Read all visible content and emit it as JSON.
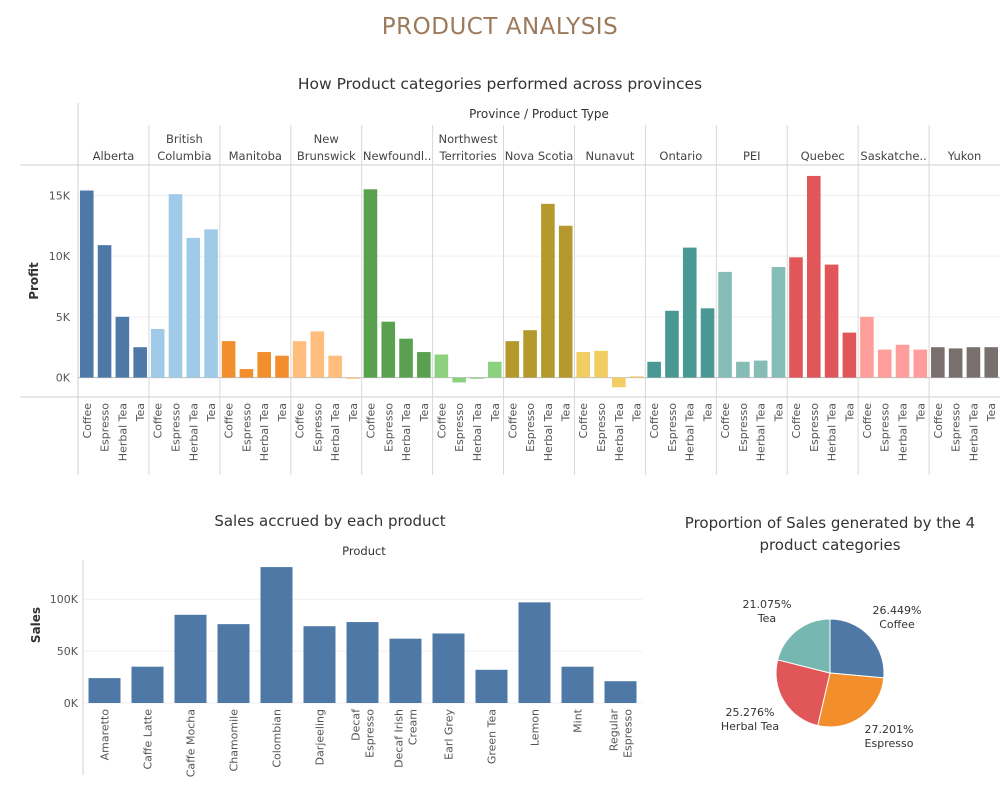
{
  "page_title": "PRODUCT ANALYSIS",
  "colors": {
    "title": "#9c7a5b",
    "provinces": [
      "#4e79a7",
      "#9fcae8",
      "#f28e2b",
      "#ffbe7d",
      "#59a14f",
      "#8cd17d",
      "#b6992d",
      "#f1ce63",
      "#499894",
      "#86bcb6",
      "#e15759",
      "#ff9d9a",
      "#79706e"
    ],
    "sales_bar": "#4e79a7",
    "pie": {
      "Coffee": "#4e79a7",
      "Espresso": "#f28e2b",
      "Herbal Tea": "#e15759",
      "Tea": "#76b7b2"
    }
  },
  "chart_data": [
    {
      "type": "bar",
      "title": "How Product categories performed across provinces",
      "header": "Province / Product Type",
      "ylabel": "Profit",
      "ylim": [
        -1600,
        17500
      ],
      "yticks": [
        0,
        5000,
        10000,
        15000
      ],
      "ytick_labels": [
        "0K",
        "5K",
        "10K",
        "15K"
      ],
      "categories": [
        "Coffee",
        "Espresso",
        "Herbal Tea",
        "Tea"
      ],
      "groups": [
        {
          "name": [
            "Alberta"
          ],
          "values": [
            15400,
            10900,
            5000,
            2500
          ]
        },
        {
          "name": [
            "British",
            "Columbia"
          ],
          "values": [
            4000,
            15100,
            11500,
            12200
          ]
        },
        {
          "name": [
            "Manitoba"
          ],
          "values": [
            3000,
            700,
            2100,
            1800
          ]
        },
        {
          "name": [
            "New",
            "Brunswick"
          ],
          "values": [
            3000,
            3800,
            1800,
            -100
          ]
        },
        {
          "name": [
            "Newfoundl.."
          ],
          "values": [
            15500,
            4600,
            3200,
            2100
          ]
        },
        {
          "name": [
            "Northwest",
            "Territories"
          ],
          "values": [
            1900,
            -400,
            -100,
            1300
          ]
        },
        {
          "name": [
            "Nova Scotia"
          ],
          "values": [
            3000,
            3900,
            14300,
            12500
          ]
        },
        {
          "name": [
            "Nunavut"
          ],
          "values": [
            2100,
            2200,
            -800,
            100
          ]
        },
        {
          "name": [
            "Ontario"
          ],
          "values": [
            1300,
            5500,
            10700,
            5700
          ]
        },
        {
          "name": [
            "PEI"
          ],
          "values": [
            8700,
            1300,
            1400,
            9100
          ]
        },
        {
          "name": [
            "Quebec"
          ],
          "values": [
            9900,
            16600,
            9300,
            3700
          ]
        },
        {
          "name": [
            "Saskatche.."
          ],
          "values": [
            5000,
            2300,
            2700,
            2300
          ]
        },
        {
          "name": [
            "Yukon"
          ],
          "values": [
            2500,
            2400,
            2500,
            2500
          ]
        }
      ]
    },
    {
      "type": "bar",
      "title": "Sales accrued by each product",
      "header": "Product",
      "ylabel": "Sales",
      "ylim": [
        0,
        133000
      ],
      "yticks": [
        0,
        50000,
        100000
      ],
      "ytick_labels": [
        "0K",
        "50K",
        "100K"
      ],
      "categories": [
        [
          "Amaretto"
        ],
        [
          "Caffe Latte"
        ],
        [
          "Caffe Mocha"
        ],
        [
          "Chamomile"
        ],
        [
          "Colombian"
        ],
        [
          "Darjeeling"
        ],
        [
          "Decaf",
          "Espresso"
        ],
        [
          "Decaf Irish",
          "Cream"
        ],
        [
          "Earl Grey"
        ],
        [
          "Green Tea"
        ],
        [
          "Lemon"
        ],
        [
          "Mint"
        ],
        [
          "Regular",
          "Espresso"
        ]
      ],
      "values": [
        24000,
        35000,
        85000,
        76000,
        131000,
        74000,
        78000,
        62000,
        67000,
        32000,
        97000,
        35000,
        21000
      ]
    },
    {
      "type": "pie",
      "title": [
        "Proportion of Sales generated by the 4",
        "product categories"
      ],
      "slices": [
        {
          "label": "Coffee",
          "pct_label": "26.449%",
          "value": 26.449
        },
        {
          "label": "Espresso",
          "pct_label": "27.201%",
          "value": 27.201
        },
        {
          "label": "Herbal Tea",
          "pct_label": "25.276%",
          "value": 25.276
        },
        {
          "label": "Tea",
          "pct_label": "21.075%",
          "value": 21.075
        }
      ]
    }
  ]
}
